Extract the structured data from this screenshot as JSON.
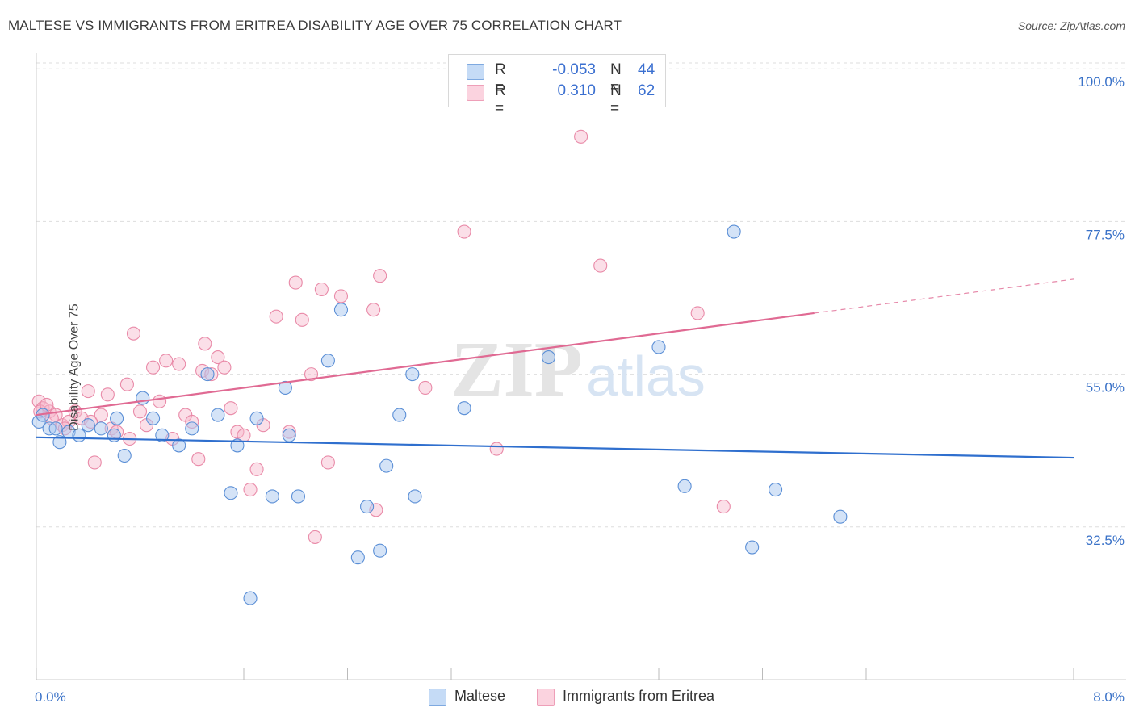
{
  "header": {
    "title": "MALTESE VS IMMIGRANTS FROM ERITREA DISABILITY AGE OVER 75 CORRELATION CHART",
    "source": "Source: ZipAtlas.com"
  },
  "legend": {
    "rows": [
      {
        "r_label": "R =",
        "r_value": "-0.053",
        "n_label": "N =",
        "n_value": "44"
      },
      {
        "r_label": "R =",
        "r_value": "0.310",
        "n_label": "N =",
        "n_value": "62"
      }
    ]
  },
  "bottom_legend": {
    "maltese": "Maltese",
    "eritrea": "Immigrants from Eritrea"
  },
  "colors": {
    "maltese_fill": "#a9c8f0",
    "maltese_stroke": "#5b8fd6",
    "maltese_line": "#2f6fce",
    "eritrea_fill": "#f6b9cb",
    "eritrea_stroke": "#e98aa8",
    "eritrea_line": "#e06a93",
    "axis_label": "#3a72c8",
    "grid": "#dddddd"
  },
  "watermark": {
    "zip": "ZIP",
    "atlas": "atlas"
  },
  "chart_data": {
    "type": "scatter",
    "title": "MALTESE VS IMMIGRANTS FROM ERITREA DISABILITY AGE OVER 75 CORRELATION CHART",
    "xlabel": "",
    "ylabel": "Disability Age Over 75",
    "xlim": [
      0,
      8
    ],
    "ylim": [
      10,
      103
    ],
    "x_tick_labels": [
      "0.0%",
      "8.0%"
    ],
    "y_ticks": [
      32.5,
      55.0,
      77.5,
      100.0
    ],
    "y_tick_labels": [
      "32.5%",
      "55.0%",
      "77.5%",
      "100.0%"
    ],
    "grid": "horizontal dashed",
    "legend_placement": "top-center",
    "series": [
      {
        "name": "Maltese",
        "R": -0.053,
        "N": 44,
        "trend": {
          "x": [
            0,
            8
          ],
          "y": [
            45.7,
            42.7
          ]
        },
        "points": [
          [
            0.02,
            48.0
          ],
          [
            0.05,
            49.0
          ],
          [
            0.1,
            47.0
          ],
          [
            0.18,
            45.0
          ],
          [
            0.25,
            46.5
          ],
          [
            0.33,
            46.0
          ],
          [
            0.4,
            47.5
          ],
          [
            0.5,
            47.0
          ],
          [
            0.62,
            48.5
          ],
          [
            0.68,
            43.0
          ],
          [
            0.82,
            51.5
          ],
          [
            0.9,
            48.5
          ],
          [
            0.97,
            46.0
          ],
          [
            1.1,
            44.5
          ],
          [
            1.2,
            47.0
          ],
          [
            1.32,
            55.0
          ],
          [
            1.4,
            49.0
          ],
          [
            1.5,
            37.5
          ],
          [
            1.55,
            44.5
          ],
          [
            1.65,
            22.0
          ],
          [
            1.7,
            48.5
          ],
          [
            1.82,
            37.0
          ],
          [
            1.92,
            53.0
          ],
          [
            1.95,
            46.0
          ],
          [
            2.02,
            37.0
          ],
          [
            2.25,
            57.0
          ],
          [
            2.35,
            64.5
          ],
          [
            2.48,
            28.0
          ],
          [
            2.55,
            35.5
          ],
          [
            2.65,
            29.0
          ],
          [
            2.7,
            41.5
          ],
          [
            2.8,
            49.0
          ],
          [
            2.9,
            55.0
          ],
          [
            2.92,
            37.0
          ],
          [
            3.3,
            50.0
          ],
          [
            3.95,
            57.5
          ],
          [
            4.8,
            59.0
          ],
          [
            5.0,
            38.5
          ],
          [
            5.38,
            76.0
          ],
          [
            5.52,
            29.5
          ],
          [
            5.7,
            38.0
          ],
          [
            6.2,
            34.0
          ],
          [
            0.15,
            47.0
          ],
          [
            0.6,
            46.0
          ]
        ]
      },
      {
        "name": "Immigrants from Eritrea",
        "R": 0.31,
        "N": 62,
        "trend": {
          "x": [
            0,
            6.0
          ],
          "y": [
            49.0,
            64.0
          ]
        },
        "trend_dashed": {
          "x": [
            6.0,
            8.0
          ],
          "y": [
            64.0,
            69.0
          ]
        },
        "points": [
          [
            0.02,
            51.0
          ],
          [
            0.05,
            50.0
          ],
          [
            0.1,
            49.5
          ],
          [
            0.15,
            49.0
          ],
          [
            0.2,
            47.5
          ],
          [
            0.25,
            48.0
          ],
          [
            0.3,
            49.5
          ],
          [
            0.35,
            48.5
          ],
          [
            0.4,
            52.5
          ],
          [
            0.42,
            48.0
          ],
          [
            0.45,
            42.0
          ],
          [
            0.5,
            49.0
          ],
          [
            0.55,
            52.0
          ],
          [
            0.58,
            47.0
          ],
          [
            0.62,
            46.5
          ],
          [
            0.7,
            53.5
          ],
          [
            0.72,
            45.5
          ],
          [
            0.75,
            61.0
          ],
          [
            0.8,
            49.5
          ],
          [
            0.85,
            47.5
          ],
          [
            0.9,
            56.0
          ],
          [
            0.95,
            51.0
          ],
          [
            1.0,
            57.0
          ],
          [
            1.05,
            45.5
          ],
          [
            1.1,
            56.5
          ],
          [
            1.15,
            49.0
          ],
          [
            1.2,
            48.0
          ],
          [
            1.25,
            42.5
          ],
          [
            1.28,
            55.5
          ],
          [
            1.3,
            59.5
          ],
          [
            1.35,
            55.0
          ],
          [
            1.4,
            57.5
          ],
          [
            1.45,
            56.0
          ],
          [
            1.5,
            50.0
          ],
          [
            1.55,
            46.5
          ],
          [
            1.6,
            46.0
          ],
          [
            1.65,
            38.0
          ],
          [
            1.7,
            41.0
          ],
          [
            1.75,
            47.5
          ],
          [
            1.85,
            63.5
          ],
          [
            1.95,
            46.5
          ],
          [
            2.0,
            68.5
          ],
          [
            2.05,
            63.0
          ],
          [
            2.12,
            55.0
          ],
          [
            2.15,
            31.0
          ],
          [
            2.2,
            67.5
          ],
          [
            2.25,
            42.0
          ],
          [
            2.35,
            66.5
          ],
          [
            2.6,
            64.5
          ],
          [
            2.62,
            35.0
          ],
          [
            2.65,
            69.5
          ],
          [
            3.0,
            53.0
          ],
          [
            3.3,
            76.0
          ],
          [
            3.55,
            44.0
          ],
          [
            4.2,
            90.0
          ],
          [
            4.35,
            71.0
          ],
          [
            5.1,
            64.0
          ],
          [
            5.3,
            35.5
          ],
          [
            0.03,
            49.5
          ],
          [
            0.12,
            48.5
          ],
          [
            0.08,
            50.5
          ],
          [
            0.22,
            47.0
          ]
        ]
      }
    ]
  }
}
